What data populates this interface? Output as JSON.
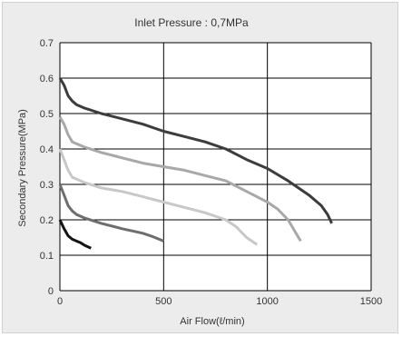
{
  "chart_data": {
    "type": "line",
    "title": "Inlet Pressure : 0,7MPa",
    "xlabel": "Air Flow(ℓ/min)",
    "ylabel": "Secondary Pressure(MPa)",
    "xlim": [
      0,
      1500
    ],
    "ylim": [
      0,
      0.7
    ],
    "x_ticks": [
      "0",
      "500",
      "1000",
      "1500"
    ],
    "y_ticks": [
      "0",
      "0.1",
      "0.2",
      "0.3",
      "0.4",
      "0.5",
      "0.6",
      "0.7"
    ],
    "grid": true,
    "legend": "none",
    "series": [
      {
        "color": "#3c3c3c",
        "x": [
          0,
          20,
          40,
          60,
          80,
          120,
          200,
          300,
          400,
          500,
          600,
          700,
          800,
          900,
          1000,
          1100,
          1200,
          1260,
          1290,
          1310
        ],
        "y": [
          0.6,
          0.58,
          0.55,
          0.535,
          0.525,
          0.515,
          0.5,
          0.485,
          0.47,
          0.45,
          0.435,
          0.42,
          0.4,
          0.37,
          0.345,
          0.31,
          0.27,
          0.24,
          0.215,
          0.19
        ]
      },
      {
        "color": "#a8a8a8",
        "x": [
          0,
          20,
          40,
          60,
          80,
          120,
          200,
          300,
          400,
          500,
          600,
          700,
          800,
          900,
          1000,
          1050,
          1100,
          1130,
          1160
        ],
        "y": [
          0.49,
          0.47,
          0.44,
          0.42,
          0.415,
          0.405,
          0.39,
          0.375,
          0.36,
          0.35,
          0.34,
          0.325,
          0.31,
          0.28,
          0.25,
          0.23,
          0.2,
          0.17,
          0.14
        ]
      },
      {
        "color": "#c8c8c8",
        "x": [
          0,
          20,
          40,
          60,
          80,
          120,
          200,
          300,
          400,
          500,
          600,
          700,
          800,
          850,
          900,
          950
        ],
        "y": [
          0.4,
          0.37,
          0.34,
          0.32,
          0.315,
          0.305,
          0.29,
          0.28,
          0.265,
          0.25,
          0.235,
          0.22,
          0.2,
          0.18,
          0.15,
          0.13
        ]
      },
      {
        "color": "#6e6e6e",
        "x": [
          0,
          20,
          40,
          60,
          80,
          120,
          200,
          300,
          400,
          450,
          500
        ],
        "y": [
          0.3,
          0.27,
          0.24,
          0.225,
          0.215,
          0.205,
          0.19,
          0.175,
          0.162,
          0.152,
          0.14
        ]
      },
      {
        "color": "#141414",
        "x": [
          0,
          20,
          40,
          60,
          80,
          100,
          120,
          150
        ],
        "y": [
          0.2,
          0.175,
          0.155,
          0.145,
          0.14,
          0.135,
          0.128,
          0.12
        ]
      }
    ]
  }
}
